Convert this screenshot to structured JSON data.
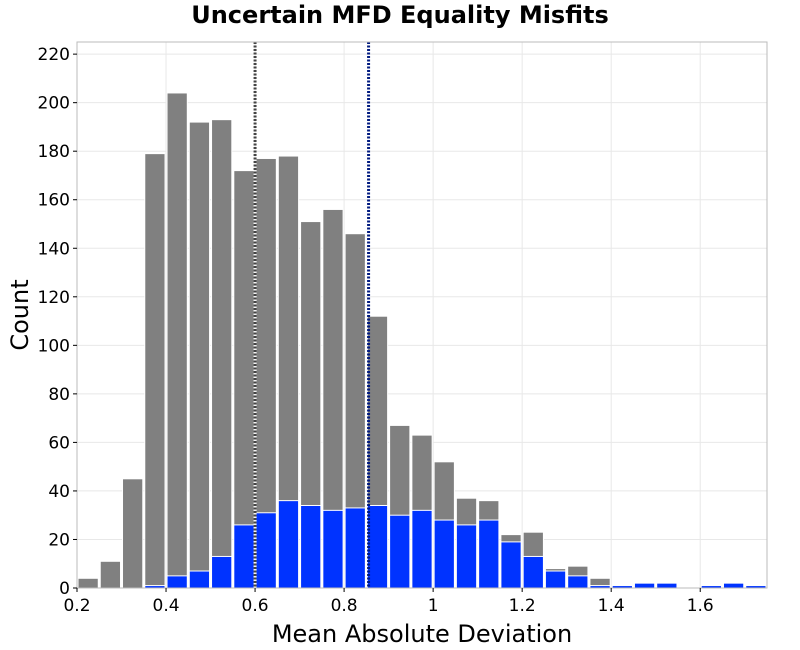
{
  "chart_data": {
    "type": "bar",
    "title": "Uncertain MFD Equality Misfits",
    "xlabel": "Mean Absolute Deviation",
    "ylabel": "Count",
    "xlim": [
      0.2,
      1.75
    ],
    "ylim": [
      0,
      225
    ],
    "bin_width": 0.05,
    "x_ticks": [
      0.2,
      0.4,
      0.6,
      0.8,
      1.0,
      1.2,
      1.4,
      1.6
    ],
    "x_tick_labels": [
      "0.2",
      "0.4",
      "0.6",
      "0.8",
      "1",
      "1.2",
      "1.4",
      "1.6"
    ],
    "y_ticks": [
      0,
      20,
      40,
      60,
      80,
      100,
      120,
      140,
      160,
      180,
      200,
      220
    ],
    "y_tick_labels": [
      "0",
      "20",
      "40",
      "60",
      "80",
      "100",
      "120",
      "140",
      "160",
      "180",
      "200",
      "220"
    ],
    "grid": true,
    "legend": "none",
    "bin_starts": [
      0.2,
      0.25,
      0.3,
      0.35,
      0.4,
      0.45,
      0.5,
      0.55,
      0.6,
      0.65,
      0.7,
      0.75,
      0.8,
      0.85,
      0.9,
      0.95,
      1.0,
      1.05,
      1.1,
      1.15,
      1.2,
      1.25,
      1.3,
      1.35,
      1.4,
      1.45,
      1.5,
      1.55,
      1.6,
      1.65,
      1.7
    ],
    "series": [
      {
        "values": [
          4,
          11,
          45,
          179,
          204,
          192,
          193,
          172,
          177,
          178,
          151,
          156,
          146,
          112,
          67,
          63,
          52,
          37,
          36,
          22,
          23,
          8,
          9,
          4,
          1,
          2,
          2,
          0,
          1,
          2,
          1
        ],
        "color": "#808080"
      },
      {
        "values": [
          0,
          0,
          0,
          1,
          5,
          7,
          13,
          26,
          31,
          36,
          34,
          32,
          33,
          34,
          30,
          32,
          28,
          26,
          28,
          19,
          13,
          7,
          5,
          1,
          1,
          2,
          2,
          0,
          1,
          2,
          1
        ],
        "color": "#0033ff"
      }
    ],
    "vlines": [
      {
        "x": 0.6,
        "color": "#444444",
        "style": "dotted"
      },
      {
        "x": 0.855,
        "color": "#001a80",
        "style": "dotted"
      }
    ],
    "bar_outline_color": "#ffffff",
    "grid_color": "#e8e8e8",
    "frame_color": "#bbbbbb"
  }
}
